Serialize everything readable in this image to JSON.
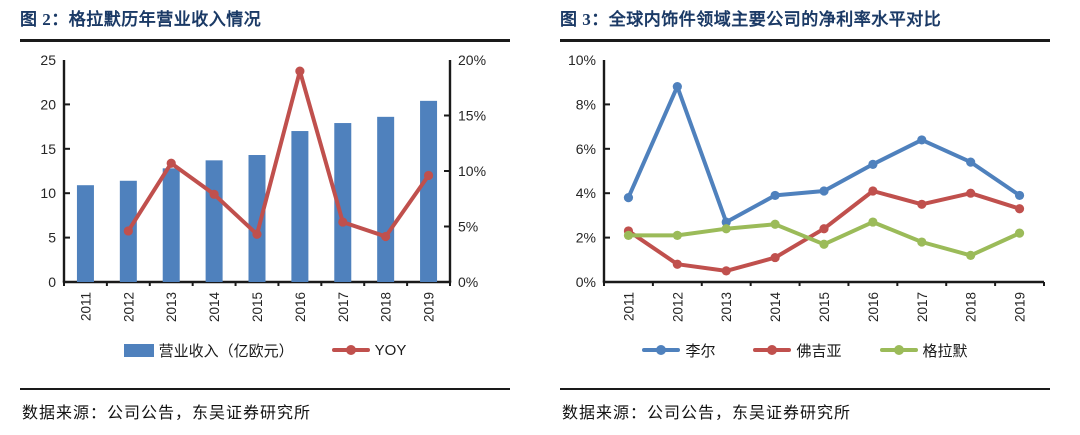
{
  "panels": [
    {
      "title": "图 2：格拉默历年营业收入情况",
      "source": "数据来源：公司公告，东吴证券研究所"
    },
    {
      "title": "图 3：全球内饰件领域主要公司的净利率水平对比",
      "source": "数据来源：公司公告，东吴证券研究所"
    }
  ],
  "colors": {
    "title_navy": "#1b3a66",
    "bar_blue": "#4f81bd",
    "line_red": "#c0504d",
    "line_blue": "#4f81bd",
    "line_green": "#9bbb59",
    "axis_black": "#1a1a1a"
  },
  "chart_data": [
    {
      "type": "bar",
      "title": "图 2：格拉默历年营业收入情况",
      "categories": [
        "2011",
        "2012",
        "2013",
        "2014",
        "2015",
        "2016",
        "2017",
        "2018",
        "2019"
      ],
      "series": [
        {
          "name": "营业收入（亿欧元）",
          "type": "bar",
          "axis": "left",
          "color": "#4f81bd",
          "values": [
            10.9,
            11.4,
            12.8,
            13.7,
            14.3,
            17.0,
            17.9,
            18.6,
            20.4
          ]
        },
        {
          "name": "YOY",
          "type": "line",
          "axis": "right",
          "color": "#c0504d",
          "values": [
            null,
            4.6,
            10.7,
            7.9,
            4.3,
            19.0,
            5.4,
            4.1,
            9.6
          ]
        }
      ],
      "left_axis": {
        "min": 0,
        "max": 25,
        "step": 5,
        "suffix": "",
        "ticks": [
          "0",
          "5",
          "10",
          "15",
          "20",
          "25"
        ]
      },
      "right_axis": {
        "min": 0,
        "max": 20,
        "step": 5,
        "suffix": "%",
        "ticks": [
          "0%",
          "5%",
          "10%",
          "15%",
          "20%"
        ]
      },
      "grid": false,
      "legend_position": "bottom"
    },
    {
      "type": "line",
      "title": "图 3：全球内饰件领域主要公司的净利率水平对比",
      "categories": [
        "2011",
        "2012",
        "2013",
        "2014",
        "2015",
        "2016",
        "2017",
        "2018",
        "2019"
      ],
      "series": [
        {
          "name": "李尔",
          "type": "line",
          "axis": "left",
          "color": "#4f81bd",
          "values": [
            3.8,
            8.8,
            2.7,
            3.9,
            4.1,
            5.3,
            6.4,
            5.4,
            3.9
          ]
        },
        {
          "name": "佛吉亚",
          "type": "line",
          "axis": "left",
          "color": "#c0504d",
          "values": [
            2.3,
            0.8,
            0.5,
            1.1,
            2.4,
            4.1,
            3.5,
            4.0,
            3.3
          ]
        },
        {
          "name": "格拉默",
          "type": "line",
          "axis": "left",
          "color": "#9bbb59",
          "values": [
            2.1,
            2.1,
            2.4,
            2.6,
            1.7,
            2.7,
            1.8,
            1.2,
            2.2
          ]
        }
      ],
      "left_axis": {
        "min": 0,
        "max": 10,
        "step": 2,
        "suffix": "%",
        "ticks": [
          "0%",
          "2%",
          "4%",
          "6%",
          "8%",
          "10%"
        ]
      },
      "grid": false,
      "legend_position": "bottom"
    }
  ]
}
